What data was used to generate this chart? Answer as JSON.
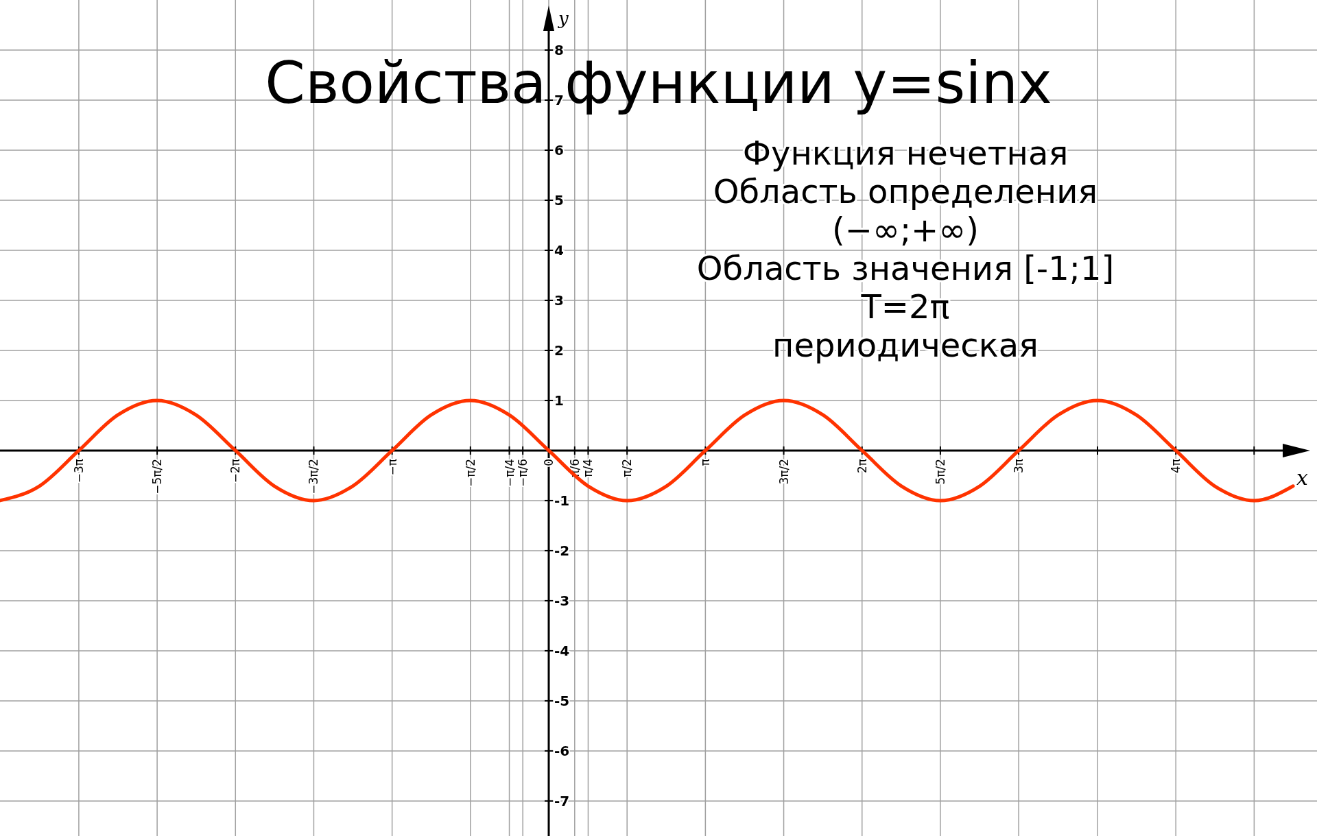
{
  "chart_data": {
    "type": "line",
    "title": "Свойства функции y=sinx",
    "annotations": [
      "Функция нечетная",
      "Область определения",
      "(−∞;+∞)",
      "Область значения [-1;1]",
      "T=2π",
      "периодическая"
    ],
    "xlabel": "x",
    "ylabel": "y",
    "x": [
      -11.0,
      -10.21,
      -9.42,
      -8.64,
      -7.85,
      -7.07,
      -6.28,
      -5.5,
      -4.71,
      -3.93,
      -3.14,
      -2.36,
      -1.57,
      -0.79,
      0,
      0.79,
      1.57,
      2.36,
      3.14,
      3.93,
      4.71,
      5.5,
      6.28,
      7.07,
      7.85,
      8.64,
      9.42,
      10.21,
      11.0,
      11.78,
      12.57,
      13.35,
      14.14,
      14.92
    ],
    "series": [
      {
        "color": "#ff3300",
        "values": [
          -1,
          -0.71,
          0,
          0.71,
          1,
          0.71,
          0,
          -0.71,
          -1,
          -0.71,
          0,
          0.71,
          1,
          0.71,
          0,
          -0.71,
          -1,
          -0.71,
          0,
          0.71,
          1,
          0.71,
          0,
          -0.71,
          -1,
          -0.71,
          0,
          0.71,
          1,
          0.71,
          0,
          -0.71,
          -1,
          -0.71
        ]
      }
    ],
    "xlim": [
      -11.0,
      15.4
    ],
    "ylim": [
      -7.7,
      9.0
    ],
    "xticks": [
      {
        "value": -9.42,
        "label": "−3π"
      },
      {
        "value": -7.85,
        "label": "−5π/2"
      },
      {
        "value": -6.28,
        "label": "−2π"
      },
      {
        "value": -4.71,
        "label": "−3π/2"
      },
      {
        "value": -3.14,
        "label": "−π"
      },
      {
        "value": -1.57,
        "label": "−π/2"
      },
      {
        "value": -0.79,
        "label": "−π/4"
      },
      {
        "value": -0.52,
        "label": "−π/6"
      },
      0,
      {
        "value": 0.52,
        "label": "π/6"
      },
      {
        "value": 0.79,
        "label": "π/4"
      },
      {
        "value": 1.57,
        "label": "π/2"
      },
      {
        "value": 3.14,
        "label": "π"
      },
      {
        "value": 4.71,
        "label": "3π/2"
      },
      {
        "value": 6.28,
        "label": "2π"
      },
      {
        "value": 7.85,
        "label": "5π/2"
      },
      {
        "value": 9.42,
        "label": "3π"
      },
      {
        "value": 11.0,
        "label": null
      },
      {
        "value": 12.57,
        "label": "4π"
      },
      {
        "value": 14.14,
        "label": null
      }
    ],
    "yticks": [
      -7,
      -6,
      -5,
      -4,
      -3,
      -2,
      -1,
      1,
      2,
      3,
      4,
      5,
      6,
      7,
      8
    ],
    "grid": true,
    "marker": "none",
    "line_style": "solid"
  }
}
